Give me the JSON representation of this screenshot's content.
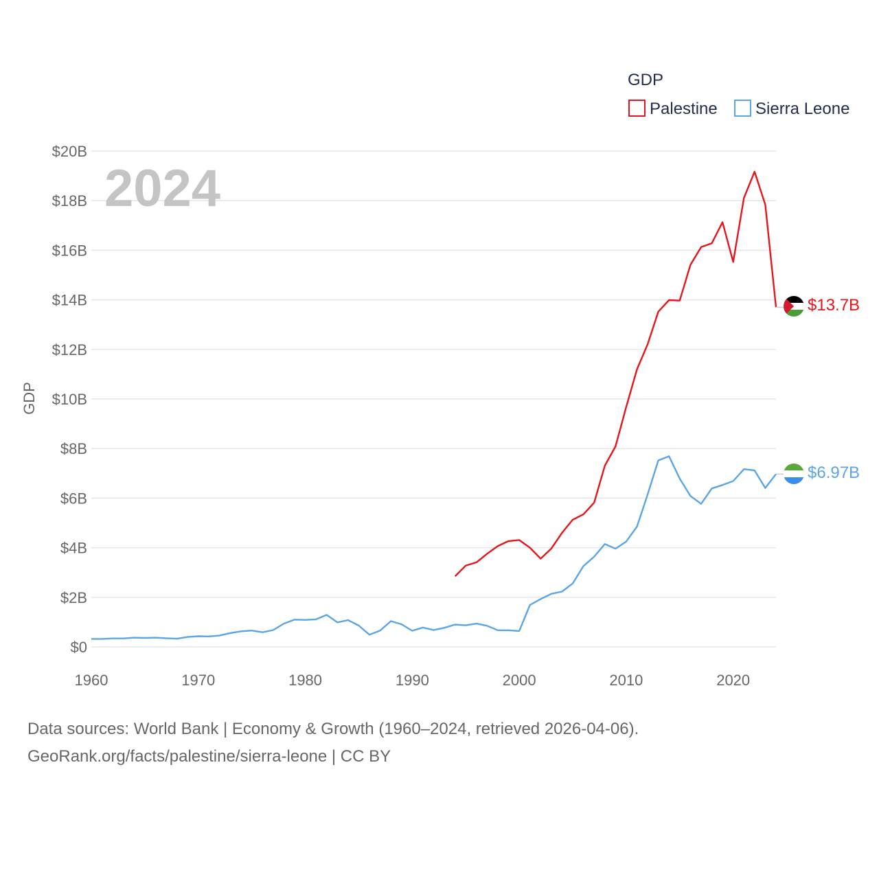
{
  "chart_data": {
    "type": "line",
    "title": "GDP",
    "ylabel": "GDP",
    "xlabel": "",
    "year_label": "2024",
    "xlim": [
      1960,
      2024
    ],
    "ylim": [
      0,
      20
    ],
    "y_unit": "billion USD",
    "x_ticks": [
      "1960",
      "1970",
      "1980",
      "1990",
      "2000",
      "2010",
      "2020"
    ],
    "y_ticks": [
      "$0",
      "$2B",
      "$4B",
      "$6B",
      "$8B",
      "$10B",
      "$12B",
      "$14B",
      "$16B",
      "$18B",
      "$20B"
    ],
    "legend_title": "GDP",
    "legend_position": "top-right",
    "series": [
      {
        "name": "Palestine",
        "color": "#e8141c",
        "end_label": "$13.7B",
        "flag": "palestine-flag-icon",
        "x": [
          1994,
          1995,
          1996,
          1997,
          1998,
          1999,
          2000,
          2001,
          2002,
          2003,
          2004,
          2005,
          2006,
          2007,
          2008,
          2009,
          2010,
          2011,
          2012,
          2013,
          2014,
          2015,
          2016,
          2017,
          2018,
          2019,
          2020,
          2021,
          2022,
          2023,
          2024
        ],
        "values": [
          2.85,
          3.28,
          3.41,
          3.76,
          4.07,
          4.27,
          4.31,
          4.0,
          3.56,
          3.97,
          4.6,
          5.13,
          5.35,
          5.82,
          7.31,
          8.09,
          9.68,
          11.19,
          12.21,
          13.52,
          13.99,
          13.97,
          15.41,
          16.13,
          16.28,
          17.13,
          15.53,
          18.11,
          19.17,
          17.84,
          13.7
        ]
      },
      {
        "name": "Sierra Leone",
        "color": "#5ba4e5",
        "end_label": "$6.97B",
        "flag": "sierra-leone-flag-icon",
        "x": [
          1960,
          1961,
          1962,
          1963,
          1964,
          1965,
          1966,
          1967,
          1968,
          1969,
          1970,
          1971,
          1972,
          1973,
          1974,
          1975,
          1976,
          1977,
          1978,
          1979,
          1980,
          1981,
          1982,
          1983,
          1984,
          1985,
          1986,
          1987,
          1988,
          1989,
          1990,
          1991,
          1992,
          1993,
          1994,
          1995,
          1996,
          1997,
          1998,
          1999,
          2000,
          2001,
          2002,
          2003,
          2004,
          2005,
          2006,
          2007,
          2008,
          2009,
          2010,
          2011,
          2012,
          2013,
          2014,
          2015,
          2016,
          2017,
          2018,
          2019,
          2020,
          2021,
          2022,
          2023,
          2024
        ],
        "values": [
          0.32,
          0.32,
          0.34,
          0.34,
          0.37,
          0.36,
          0.37,
          0.35,
          0.33,
          0.4,
          0.43,
          0.42,
          0.46,
          0.56,
          0.63,
          0.66,
          0.59,
          0.68,
          0.94,
          1.1,
          1.09,
          1.11,
          1.29,
          0.99,
          1.08,
          0.86,
          0.49,
          0.66,
          1.04,
          0.91,
          0.65,
          0.78,
          0.68,
          0.77,
          0.9,
          0.87,
          0.94,
          0.85,
          0.67,
          0.67,
          0.64,
          1.69,
          1.93,
          2.14,
          2.23,
          2.56,
          3.26,
          3.64,
          4.15,
          3.96,
          4.25,
          4.85,
          6.15,
          7.52,
          7.69,
          6.79,
          6.09,
          5.77,
          6.39,
          6.53,
          6.69,
          7.17,
          7.12,
          6.41,
          6.97
        ]
      }
    ]
  },
  "footer": {
    "line1": "Data sources: World Bank | Economy & Growth (1960–2024, retrieved 2026-04-06).",
    "line2": "GeoRank.org/facts/palestine/sierra-leone | CC BY"
  }
}
